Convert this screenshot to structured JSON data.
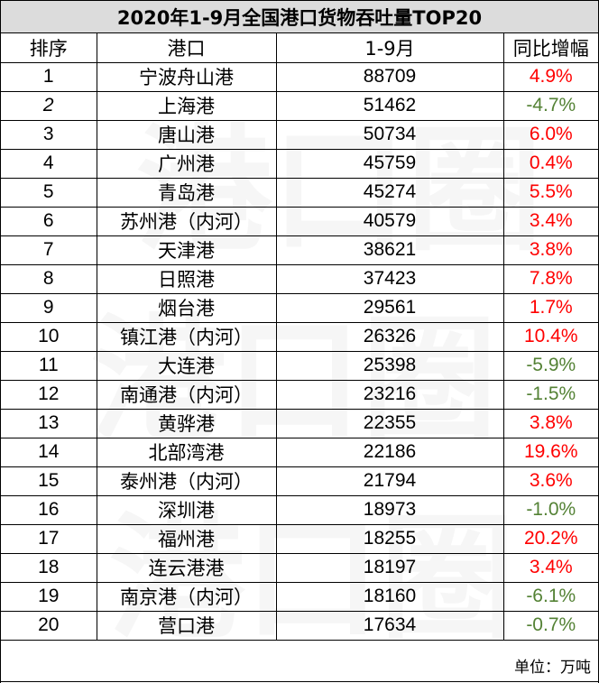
{
  "title": "2020年1-9月全国港口货物吞吐量TOP20",
  "headers": {
    "rank": "排序",
    "port": "港口",
    "value": "1-9月",
    "yoy": "同比增幅"
  },
  "rows": [
    {
      "rank": "1",
      "port": "宁波舟山港",
      "value": "88709",
      "yoy": "4.9%"
    },
    {
      "rank": "2",
      "port": "上海港",
      "value": "51462",
      "yoy": "-4.7%"
    },
    {
      "rank": "3",
      "port": "唐山港",
      "value": "50734",
      "yoy": "6.0%"
    },
    {
      "rank": "4",
      "port": "广州港",
      "value": "45759",
      "yoy": "0.4%"
    },
    {
      "rank": "5",
      "port": "青岛港",
      "value": "45274",
      "yoy": "5.5%"
    },
    {
      "rank": "6",
      "port": "苏州港（内河）",
      "value": "40579",
      "yoy": "3.4%"
    },
    {
      "rank": "7",
      "port": "天津港",
      "value": "38621",
      "yoy": "3.8%"
    },
    {
      "rank": "8",
      "port": "日照港",
      "value": "37423",
      "yoy": "7.8%"
    },
    {
      "rank": "9",
      "port": "烟台港",
      "value": "29561",
      "yoy": "1.7%"
    },
    {
      "rank": "10",
      "port": "镇江港（内河）",
      "value": "26326",
      "yoy": "10.4%"
    },
    {
      "rank": "11",
      "port": "大连港",
      "value": "25398",
      "yoy": "-5.9%"
    },
    {
      "rank": "12",
      "port": "南通港（内河）",
      "value": "23216",
      "yoy": "-1.5%"
    },
    {
      "rank": "13",
      "port": "黄骅港",
      "value": "22355",
      "yoy": "3.8%"
    },
    {
      "rank": "14",
      "port": "北部湾港",
      "value": "22186",
      "yoy": "19.6%"
    },
    {
      "rank": "15",
      "port": "泰州港（内河）",
      "value": "21794",
      "yoy": "3.6%"
    },
    {
      "rank": "16",
      "port": "深圳港",
      "value": "18973",
      "yoy": "-1.0%"
    },
    {
      "rank": "17",
      "port": "福州港",
      "value": "18255",
      "yoy": "20.2%"
    },
    {
      "rank": "18",
      "port": "连云港港",
      "value": "18197",
      "yoy": "3.4%"
    },
    {
      "rank": "19",
      "port": "南京港（内河）",
      "value": "18160",
      "yoy": "-6.1%"
    },
    {
      "rank": "20",
      "port": "营口港",
      "value": "17634",
      "yoy": "-0.7%"
    }
  ],
  "unit_note": "单位：万吨",
  "watermark_text": "港口圈",
  "colors": {
    "positive": "#ff0000",
    "negative": "#548235",
    "title_bg": "#dcdcdc"
  }
}
